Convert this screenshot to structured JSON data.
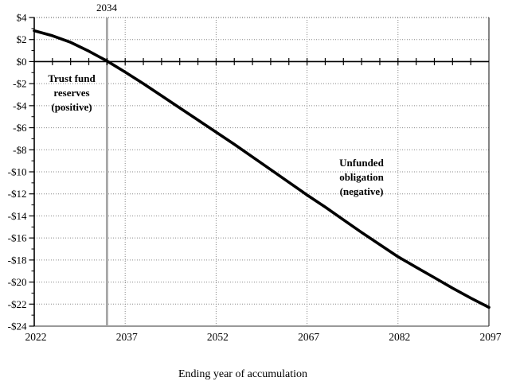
{
  "chart_data": {
    "type": "line",
    "title": "",
    "xlabel": "Ending year of accumulation",
    "ylabel": "",
    "xlim": [
      2022,
      2097
    ],
    "ylim": [
      -24,
      4
    ],
    "x_tick_years": [
      2022,
      2037,
      2052,
      2067,
      2082,
      2097
    ],
    "x_tick_labels": [
      "2022",
      "2037",
      "2052",
      "2067",
      "2082",
      "2097"
    ],
    "x_minor_step_years": 3,
    "y_tick_values": [
      4,
      2,
      0,
      -2,
      -4,
      -6,
      -8,
      -10,
      -12,
      -14,
      -16,
      -18,
      -20,
      -22,
      -24
    ],
    "y_tick_labels": [
      "$4",
      "$2",
      "$0",
      "-$2",
      "-$4",
      "-$6",
      "-$8",
      "-$10",
      "-$12",
      "-$14",
      "-$16",
      "-$18",
      "-$20",
      "-$22",
      "-$24"
    ],
    "y_minor_step": 1,
    "grid": {
      "horizontal": "dotted",
      "vertical": "dotted",
      "legend": "none"
    },
    "depletion_line": {
      "label": "2034",
      "year": 2034
    },
    "annotations": {
      "positive": {
        "lines": [
          "Trust fund",
          "reserves",
          "(positive)"
        ]
      },
      "negative": {
        "lines": [
          "Unfunded",
          "obligation",
          "(negative)"
        ]
      }
    },
    "colors": {
      "curve": "#000000",
      "depletion_line": "#a6a6a6",
      "grid": "#888888",
      "axis": "#000000",
      "bottom_border": "#999999",
      "top_border": "#555555",
      "right_border": "#333333"
    },
    "series": [
      {
        "x": [
          2022,
          2025,
          2028,
          2031,
          2034,
          2037,
          2040,
          2043,
          2046,
          2049,
          2052,
          2055,
          2058,
          2061,
          2064,
          2067,
          2070,
          2073,
          2076,
          2079,
          2082,
          2085,
          2088,
          2091,
          2094,
          2097
        ],
        "y": [
          2.8,
          2.35,
          1.75,
          0.95,
          0.05,
          -0.95,
          -2.0,
          -3.1,
          -4.2,
          -5.3,
          -6.4,
          -7.5,
          -8.65,
          -9.8,
          -10.95,
          -12.1,
          -13.2,
          -14.35,
          -15.5,
          -16.6,
          -17.7,
          -18.65,
          -19.6,
          -20.55,
          -21.45,
          -22.3
        ]
      }
    ]
  }
}
